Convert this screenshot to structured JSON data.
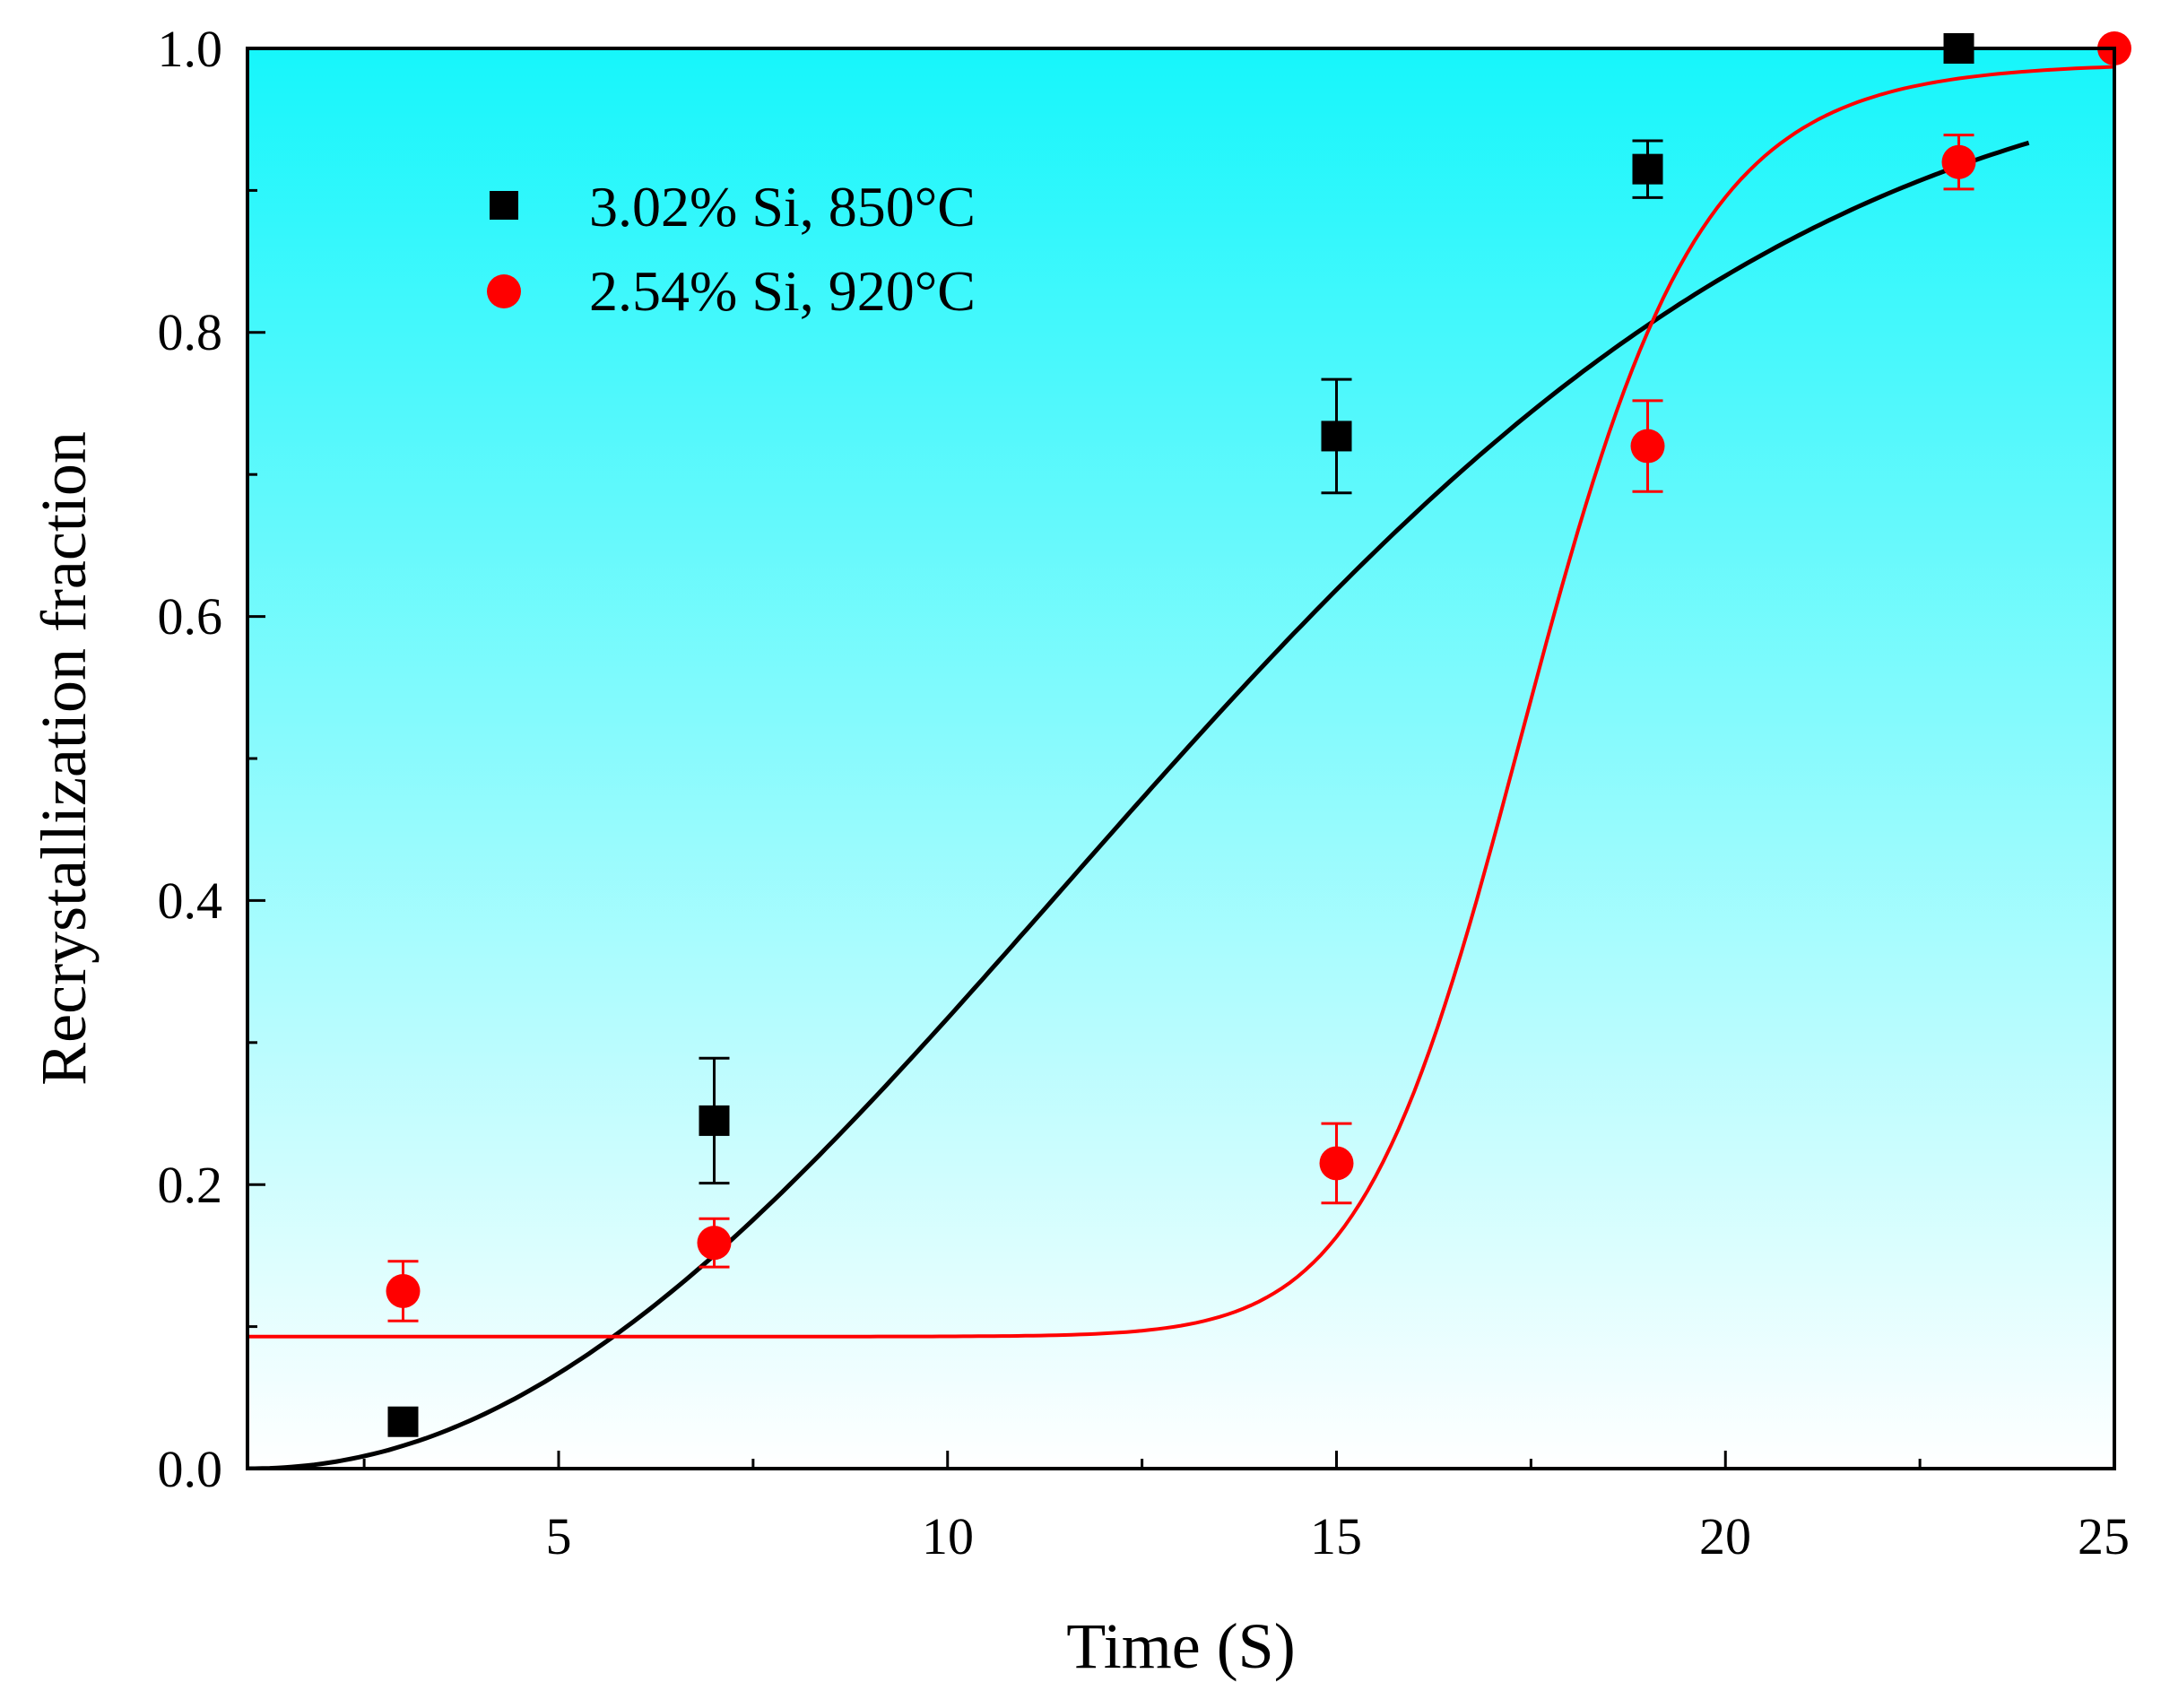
{
  "chart_data": {
    "type": "scatter",
    "title": "",
    "xlabel": "Time (S)",
    "ylabel": "Recrystallization fraction",
    "xlim": [
      1,
      25
    ],
    "ylim": [
      0.0,
      1.0
    ],
    "xticks": [
      5,
      10,
      15,
      20,
      25
    ],
    "yticks": [
      0.0,
      0.2,
      0.4,
      0.6,
      0.8,
      1.0
    ],
    "xtick_labels": [
      "5",
      "10",
      "15",
      "20",
      "25"
    ],
    "ytick_labels": [
      "0.0",
      "0.2",
      "0.4",
      "0.6",
      "0.8",
      "1.0"
    ],
    "grid": false,
    "legend_position": "top-left",
    "background": {
      "top": "#16f6fb",
      "bottom": "#ffffff"
    },
    "series": [
      {
        "name": "3.02% Si, 850°C",
        "marker": "square",
        "color": "#000000",
        "points": [
          {
            "x": 3,
            "y": 0.033,
            "err": 0.0
          },
          {
            "x": 7,
            "y": 0.245,
            "err": 0.044
          },
          {
            "x": 15,
            "y": 0.727,
            "err": 0.04
          },
          {
            "x": 19,
            "y": 0.915,
            "err": 0.02
          },
          {
            "x": 23,
            "y": 1.0,
            "err": 0.0
          }
        ],
        "fit": {
          "model": "avrami",
          "k": 0.00378,
          "n": 2.1,
          "x_start": 1,
          "x_end": 23.9
        }
      },
      {
        "name": "2.54% Si, 920°C",
        "marker": "circle",
        "color": "#ff0000",
        "points": [
          {
            "x": 3,
            "y": 0.125,
            "err": 0.021
          },
          {
            "x": 7,
            "y": 0.159,
            "err": 0.017
          },
          {
            "x": 15,
            "y": 0.215,
            "err": 0.028
          },
          {
            "x": 19,
            "y": 0.72,
            "err": 0.032
          },
          {
            "x": 23,
            "y": 0.92,
            "err": 0.019
          },
          {
            "x": 25,
            "y": 1.0,
            "err": 0.0
          }
        ],
        "fit": {
          "model": "logistic",
          "base": 0.093,
          "top": 0.99,
          "x0": 17.5,
          "p": 16.0,
          "x_start": 1,
          "x_end": 25
        }
      }
    ]
  }
}
